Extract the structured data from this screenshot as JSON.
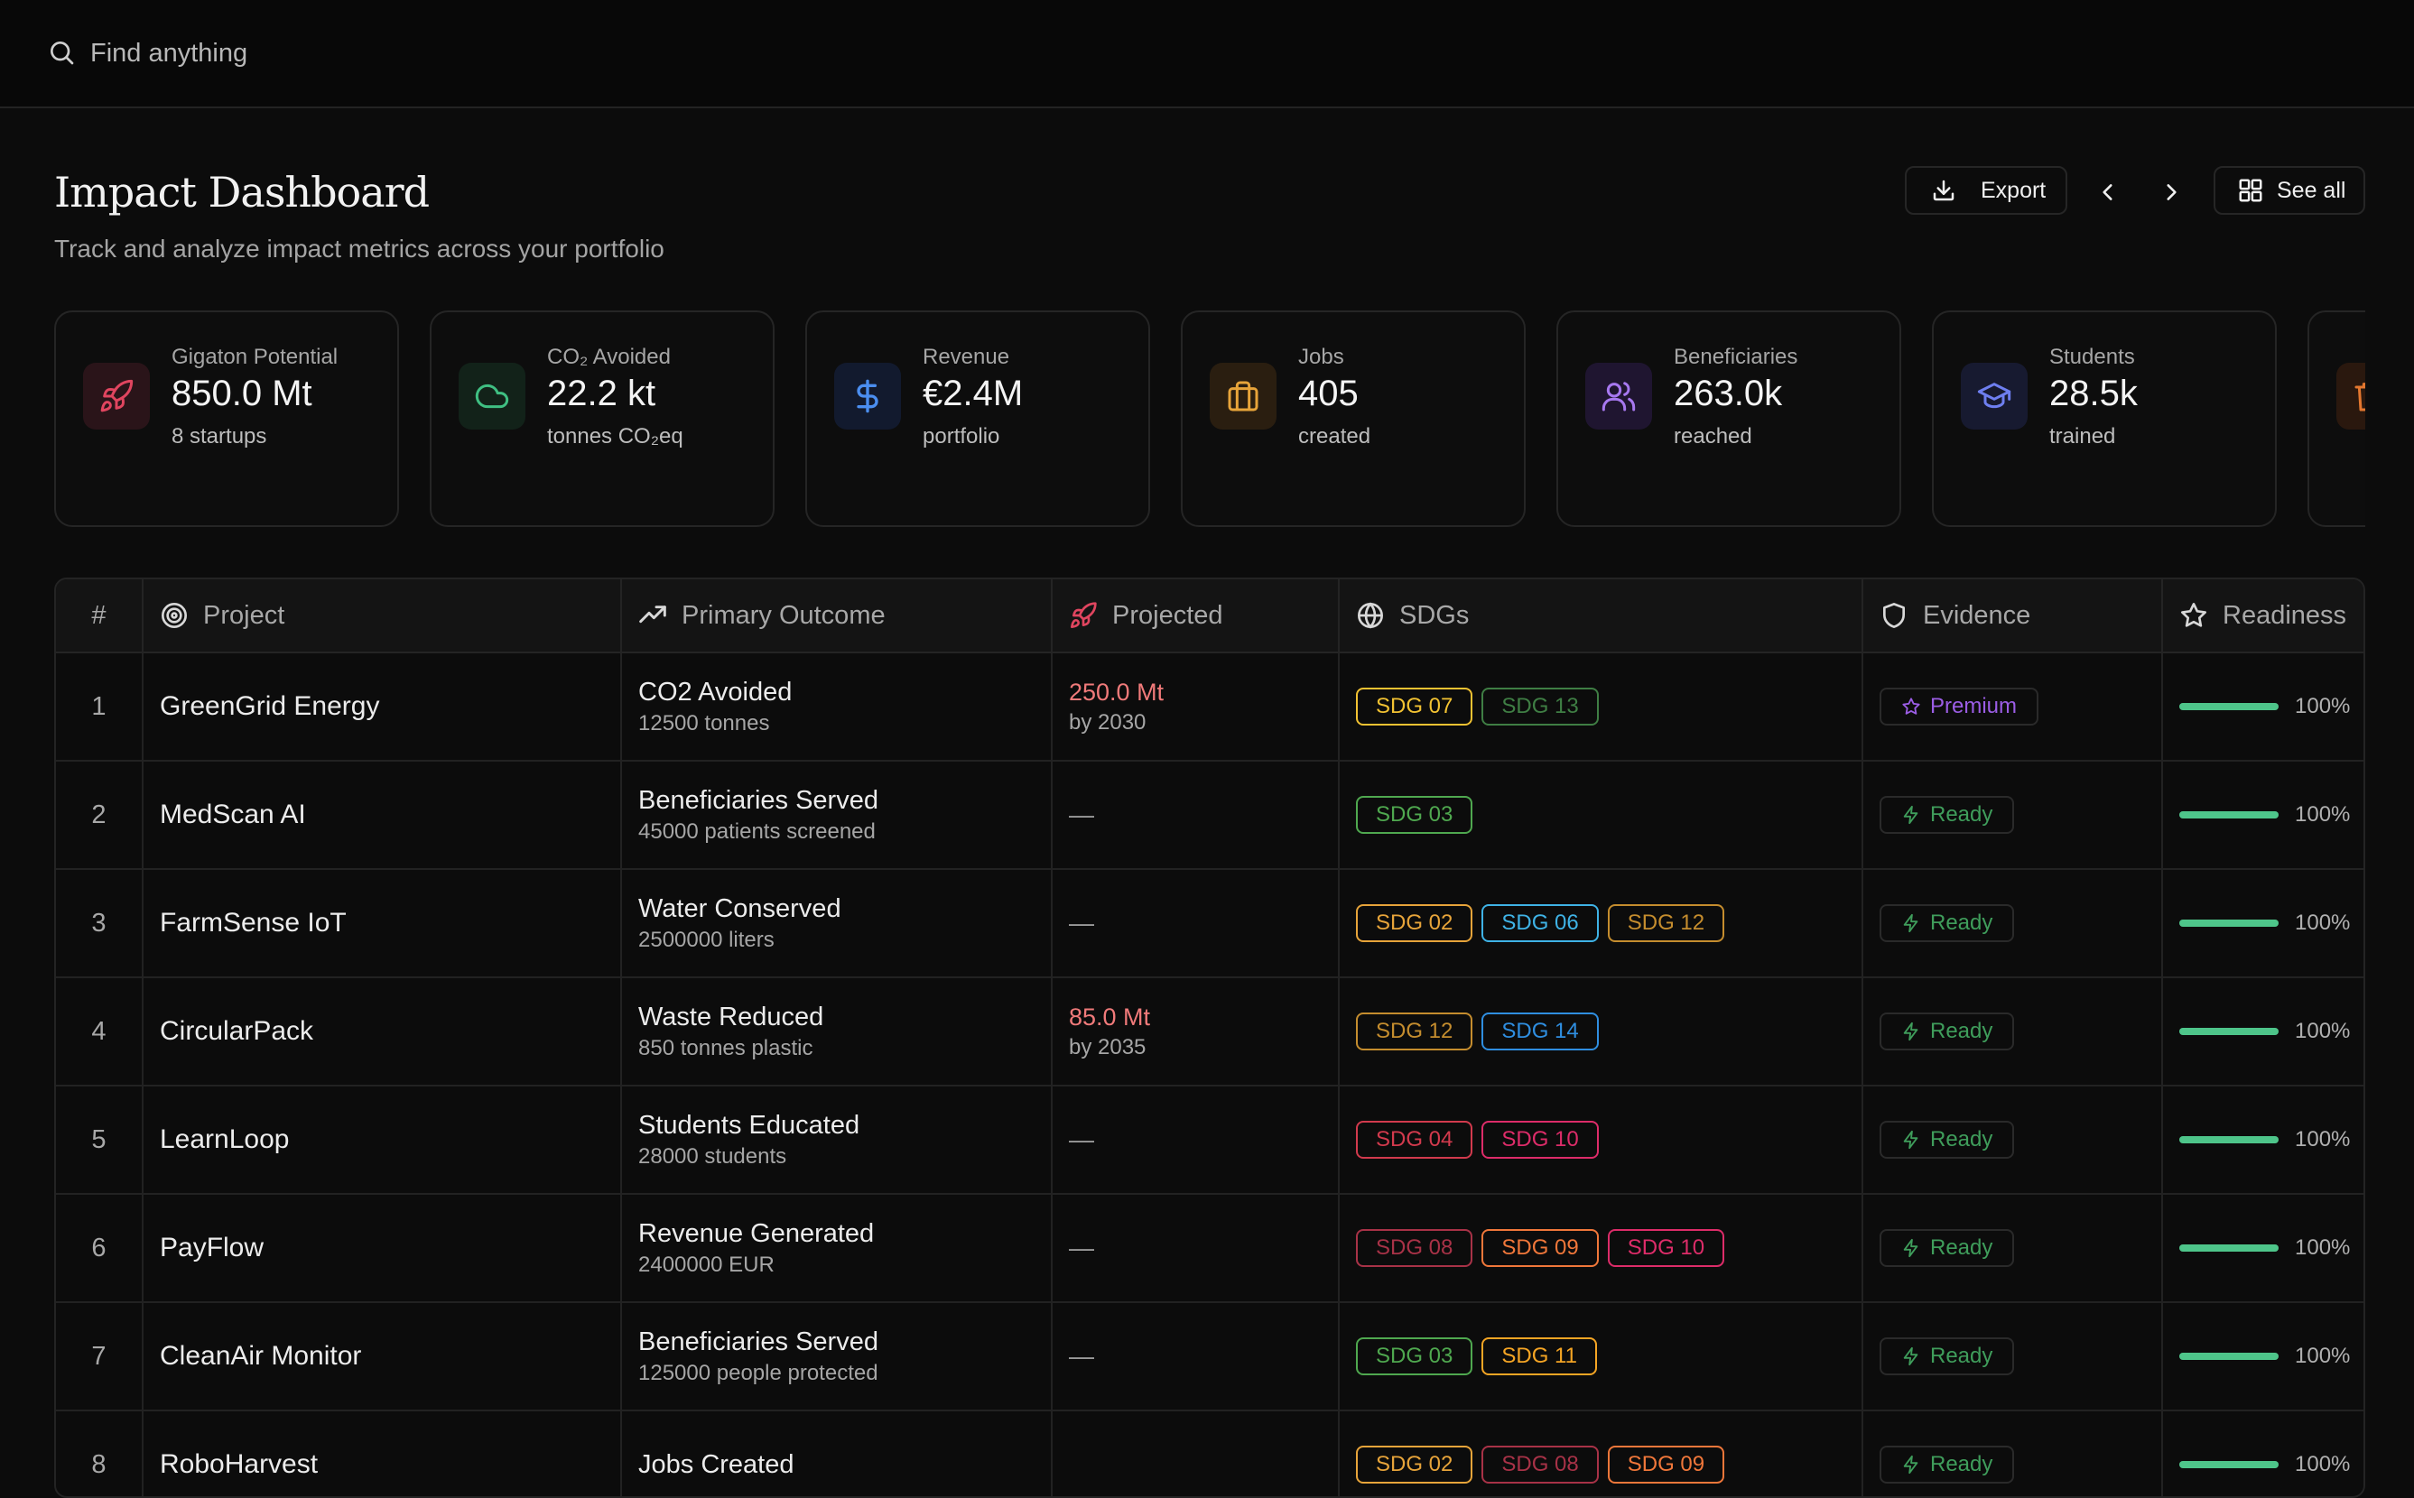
{
  "search": {
    "placeholder": "Find anything"
  },
  "header": {
    "title": "Impact Dashboard",
    "subtitle": "Track and analyze impact metrics across your portfolio",
    "export_label": "Export",
    "see_all_label": "See all"
  },
  "stats": [
    {
      "label": "Gigaton Potential",
      "value": "850.0 Mt",
      "note": "8 startups",
      "icon": "rocket-icon",
      "color": "#e0455f"
    },
    {
      "label": "CO₂ Avoided",
      "value": "22.2 kt",
      "note": "tonnes CO₂eq",
      "icon": "cloud-icon",
      "color": "#3fbf82"
    },
    {
      "label": "Revenue",
      "value": "€2.4M",
      "note": "portfolio",
      "icon": "dollar-icon",
      "color": "#4b8ef0"
    },
    {
      "label": "Jobs",
      "value": "405",
      "note": "created",
      "icon": "briefcase-icon",
      "color": "#e7a43a"
    },
    {
      "label": "Beneficiaries",
      "value": "263.0k",
      "note": "reached",
      "icon": "users-icon",
      "color": "#a778f0"
    },
    {
      "label": "Students",
      "value": "28.5k",
      "note": "trained",
      "icon": "graduation-cap-icon",
      "color": "#6e7ff0"
    }
  ],
  "table": {
    "columns": [
      "#",
      "Project",
      "Primary Outcome",
      "Projected",
      "SDGs",
      "Evidence",
      "Readiness"
    ],
    "rows": [
      {
        "num": "1",
        "project": "GreenGrid Energy",
        "outcome": "CO2 Avoided",
        "outcome_detail": "12500 tonnes",
        "projected": "250.0 Mt",
        "projected_detail": "by 2030",
        "sdgs": [
          "SDG 07",
          "SDG 13"
        ],
        "evidence": "Premium",
        "readiness": 1.0,
        "readiness_label": "100%"
      },
      {
        "num": "2",
        "project": "MedScan AI",
        "outcome": "Beneficiaries Served",
        "outcome_detail": "45000 patients screened",
        "projected": "—",
        "projected_detail": "",
        "sdgs": [
          "SDG 03"
        ],
        "evidence": "Ready",
        "readiness": 1.0,
        "readiness_label": "100%"
      },
      {
        "num": "3",
        "project": "FarmSense IoT",
        "outcome": "Water Conserved",
        "outcome_detail": "2500000 liters",
        "projected": "—",
        "projected_detail": "",
        "sdgs": [
          "SDG 02",
          "SDG 06",
          "SDG 12"
        ],
        "evidence": "Ready",
        "readiness": 1.0,
        "readiness_label": "100%"
      },
      {
        "num": "4",
        "project": "CircularPack",
        "outcome": "Waste Reduced",
        "outcome_detail": "850 tonnes plastic",
        "projected": "85.0 Mt",
        "projected_detail": "by 2035",
        "sdgs": [
          "SDG 12",
          "SDG 14"
        ],
        "evidence": "Ready",
        "readiness": 1.0,
        "readiness_label": "100%"
      },
      {
        "num": "5",
        "project": "LearnLoop",
        "outcome": "Students Educated",
        "outcome_detail": "28000 students",
        "projected": "—",
        "projected_detail": "",
        "sdgs": [
          "SDG 04",
          "SDG 10"
        ],
        "evidence": "Ready",
        "readiness": 1.0,
        "readiness_label": "100%"
      },
      {
        "num": "6",
        "project": "PayFlow",
        "outcome": "Revenue Generated",
        "outcome_detail": "2400000 EUR",
        "projected": "—",
        "projected_detail": "",
        "sdgs": [
          "SDG 08",
          "SDG 09",
          "SDG 10"
        ],
        "evidence": "Ready",
        "readiness": 1.0,
        "readiness_label": "100%"
      },
      {
        "num": "7",
        "project": "CleanAir Monitor",
        "outcome": "Beneficiaries Served",
        "outcome_detail": "125000 people protected",
        "projected": "—",
        "projected_detail": "",
        "sdgs": [
          "SDG 03",
          "SDG 11"
        ],
        "evidence": "Ready",
        "readiness": 1.0,
        "readiness_label": "100%"
      },
      {
        "num": "8",
        "project": "RoboHarvest",
        "outcome": "Jobs Created",
        "outcome_detail": "",
        "projected": "",
        "projected_detail": "",
        "sdgs": [
          "SDG 02",
          "SDG 08",
          "SDG 09"
        ],
        "evidence": "Ready",
        "readiness": 1.0,
        "readiness_label": "100%"
      }
    ]
  },
  "sdg_colors": {
    "SDG 02": "#e7a43a",
    "SDG 03": "#4fa84f",
    "SDG 04": "#d23a4d",
    "SDG 06": "#3fb3e6",
    "SDG 07": "#f2c232",
    "SDG 08": "#a83247",
    "SDG 09": "#f0773a",
    "SDG 10": "#dd2c69",
    "SDG 11": "#f5a524",
    "SDG 12": "#c58d2e",
    "SDG 13": "#3f7e44",
    "SDG 14": "#2f8ee0"
  },
  "evidence_colors": {
    "Premium": "#9b5de5",
    "Ready": "#3f9d5b"
  }
}
